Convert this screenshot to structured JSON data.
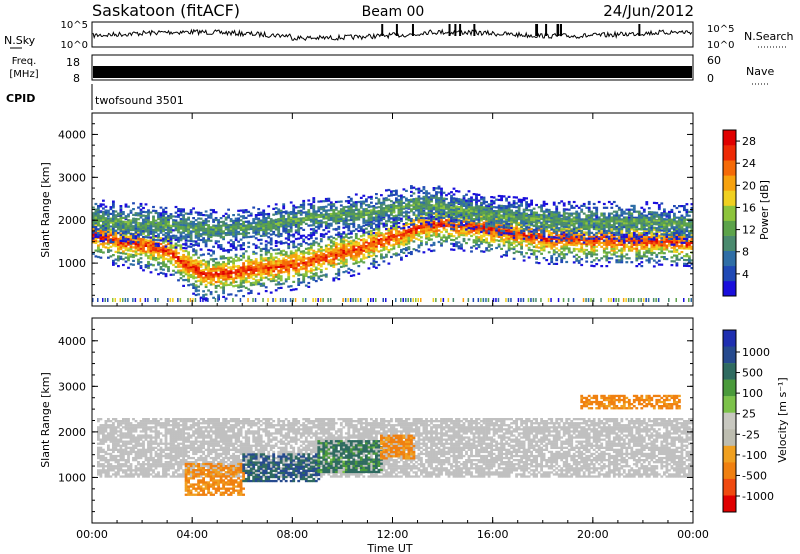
{
  "header": {
    "station": "Saskatoon (fitACF)",
    "beam": "Beam 00",
    "date": "24/Jun/2012"
  },
  "status_panels": {
    "noise_left_label": "N.Sky",
    "noise_ticks_left": [
      "10^5",
      "10^0"
    ],
    "noise_right_label": "N.Search",
    "noise_ticks_right": [
      "10^5",
      "10^0"
    ],
    "freq_left_label_1": "Freq.",
    "freq_left_label_2": "[MHz]",
    "freq_ticks_left": [
      "18",
      "8"
    ],
    "freq_right_label": "Nave",
    "freq_ticks_right": [
      "60",
      "0"
    ],
    "cpid_label": "CPID",
    "cpid_value": "twofsound 3501"
  },
  "colors": {
    "power_scale": [
      "#1a0fdc",
      "#2049b5",
      "#2f6ea6",
      "#4a8a6e",
      "#5ca34a",
      "#8dc43c",
      "#f0d020",
      "#f7a20e",
      "#f56a08",
      "#ee2a05",
      "#e00000"
    ],
    "velocity_scale": [
      "#1f2fb0",
      "#264a8e",
      "#2f6b60",
      "#4a9a3b",
      "#7cc24a",
      "#c8c8c0",
      "#bdbdb0",
      "#f0a020",
      "#f08010",
      "#f04a10",
      "#e00000"
    ],
    "ground_scatter": "#c0c0c0"
  },
  "chart_data": [
    {
      "panel": "power",
      "type": "heatmap",
      "x_labels": [
        "00:00",
        "04:00",
        "08:00",
        "12:00",
        "16:00",
        "20:00",
        "00:00"
      ],
      "xlim": [
        0,
        24
      ],
      "ylabel": "Slant Range [km]",
      "ylim": [
        0,
        4500
      ],
      "y_ticks": [
        "1000",
        "2000",
        "3000",
        "4000"
      ],
      "colorbar": {
        "label": "Power [dB]",
        "ticks": [
          "4",
          "8",
          "12",
          "16",
          "20",
          "24",
          "28"
        ],
        "range": [
          0,
          30
        ]
      },
      "bands": [
        {
          "x": [
            0,
            1,
            2,
            3,
            3.7,
            4.5,
            5.5,
            6.5,
            7.5,
            8.5,
            9.5,
            10.5,
            11.5,
            12.3,
            13,
            14,
            15,
            16,
            17,
            18,
            19,
            20,
            21,
            22,
            23,
            24
          ],
          "y": [
            1650,
            1500,
            1400,
            1250,
            950,
            700,
            750,
            850,
            900,
            1000,
            1150,
            1300,
            1500,
            1650,
            1800,
            1900,
            1850,
            1750,
            1650,
            1550,
            1550,
            1500,
            1500,
            1500,
            1480,
            1450
          ],
          "width": 420,
          "power": 26
        },
        {
          "x": [
            0,
            1,
            2,
            3,
            4,
            5,
            6,
            7,
            8,
            9,
            10,
            11,
            12,
            13,
            14,
            15,
            16,
            17,
            18,
            19,
            20,
            21,
            22,
            23,
            24
          ],
          "y": [
            2000,
            1950,
            1900,
            1850,
            1800,
            1750,
            1800,
            1850,
            2000,
            2050,
            2100,
            2150,
            2250,
            2350,
            2300,
            2200,
            2100,
            2050,
            2000,
            1950,
            1950,
            1950,
            1950,
            1900,
            1900
          ],
          "width": 350,
          "power": 12
        }
      ]
    },
    {
      "panel": "velocity",
      "type": "heatmap",
      "x_labels": [
        "00:00",
        "04:00",
        "08:00",
        "12:00",
        "16:00",
        "20:00",
        "00:00"
      ],
      "xlabel": "Time UT",
      "xlim": [
        0,
        24
      ],
      "ylabel": "Slant Range [km]",
      "ylim": [
        0,
        4500
      ],
      "y_ticks": [
        "1000",
        "2000",
        "3000",
        "4000"
      ],
      "colorbar": {
        "label": "Velocity [m s⁻¹]",
        "ticks": [
          "1000",
          "500",
          "100",
          "25",
          "-25",
          "-100",
          "-500",
          "-1000"
        ]
      },
      "regions": [
        {
          "x0": 0.2,
          "x1": 24,
          "y0": 1000,
          "y1": 2300,
          "velocity": 0,
          "ground_scatter": true
        },
        {
          "x0": 3.7,
          "x1": 6.0,
          "y0": 600,
          "y1": 1300,
          "velocity": -150
        },
        {
          "x0": 6.0,
          "x1": 9.0,
          "y0": 900,
          "y1": 1500,
          "velocity": 300
        },
        {
          "x0": 9.0,
          "x1": 11.5,
          "y0": 1100,
          "y1": 1800,
          "velocity": 150
        },
        {
          "x0": 11.5,
          "x1": 12.8,
          "y0": 1400,
          "y1": 1900,
          "velocity": -150
        },
        {
          "x0": 19.5,
          "x1": 23.5,
          "y0": 2500,
          "y1": 2800,
          "velocity": -150
        }
      ]
    }
  ]
}
